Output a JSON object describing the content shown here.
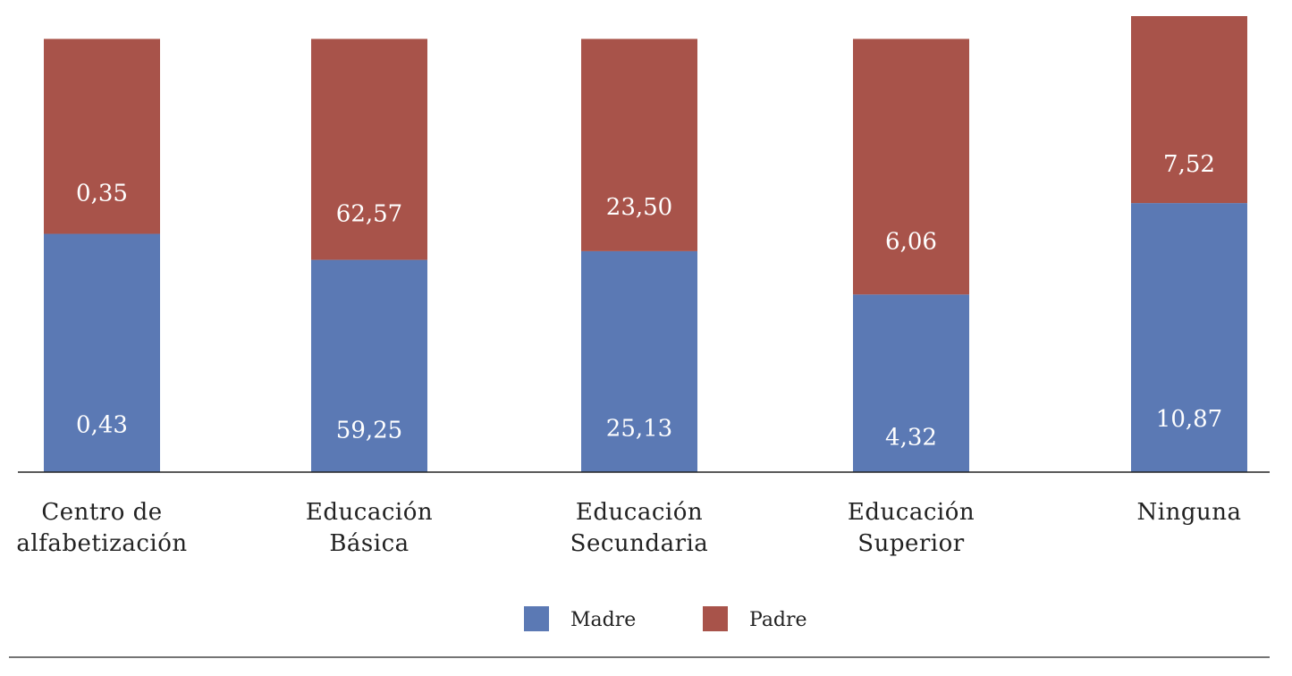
{
  "chart_data": {
    "type": "bar",
    "stacked": true,
    "normalized_percent": true,
    "categories": [
      [
        "Centro de",
        "alfabetización"
      ],
      [
        "Educación",
        "Básica"
      ],
      [
        "Educación",
        "Secundaria"
      ],
      [
        "Educación",
        "Superior"
      ],
      [
        "Ninguna"
      ]
    ],
    "series": [
      {
        "name": "Madre",
        "color": "#5b79b4",
        "values": [
          0.43,
          59.25,
          25.13,
          4.32,
          10.87
        ],
        "labels": [
          "0,43",
          "59,25",
          "25,13",
          "4,32",
          "10,87"
        ]
      },
      {
        "name": "Padre",
        "color": "#a8534a",
        "values": [
          0.35,
          62.57,
          23.5,
          6.06,
          7.52
        ],
        "labels": [
          "0,35",
          "62,57",
          "23,50",
          "6,06",
          "7,52"
        ]
      }
    ],
    "madre_share_percent": [
      55,
      49,
      51,
      41,
      59
    ],
    "bar_total_percent": [
      95,
      95,
      95,
      95,
      100
    ],
    "title": "",
    "xlabel": "",
    "ylabel": "",
    "legend_position": "bottom-center",
    "grid": false
  }
}
